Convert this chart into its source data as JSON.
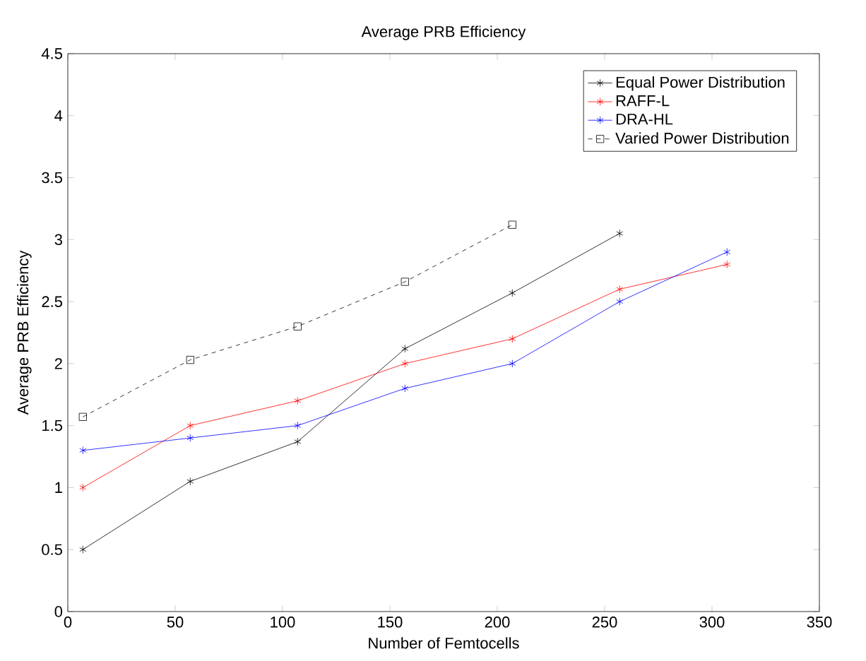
{
  "chart_data": {
    "type": "line",
    "title": "Average PRB Efficiency",
    "xlabel": "Number of Femtocells",
    "ylabel": "Average PRB Efficiency",
    "x": [
      7,
      57,
      107,
      157,
      207,
      257,
      307
    ],
    "series": [
      {
        "name": "Equal Power Distribution",
        "color": "#000000",
        "marker": "cross",
        "line_style": "solid",
        "values": [
          0.5,
          1.05,
          1.37,
          2.12,
          2.57,
          3.05,
          null
        ]
      },
      {
        "name": "RAFF-L",
        "color": "#ff0000",
        "marker": "cross",
        "line_style": "solid",
        "values": [
          1.0,
          1.5,
          1.7,
          2.0,
          2.2,
          2.6,
          2.8
        ]
      },
      {
        "name": "DRA-HL",
        "color": "#0000ff",
        "marker": "cross",
        "line_style": "solid",
        "values": [
          1.3,
          1.4,
          1.5,
          1.8,
          2.0,
          2.5,
          2.9
        ]
      },
      {
        "name": "Varied Power Distribution",
        "color": "#000000",
        "marker": "square",
        "line_style": "dashed",
        "values": [
          1.57,
          2.03,
          2.3,
          2.66,
          3.12,
          null,
          null
        ]
      }
    ],
    "xlim": [
      0,
      350
    ],
    "ylim": [
      0,
      4.5
    ],
    "xticks": [
      0,
      50,
      100,
      150,
      200,
      250,
      300,
      350
    ],
    "yticks": [
      0,
      0.5,
      1,
      1.5,
      2,
      2.5,
      3,
      3.5,
      4,
      4.5
    ],
    "legend": "top right",
    "grid": false
  }
}
